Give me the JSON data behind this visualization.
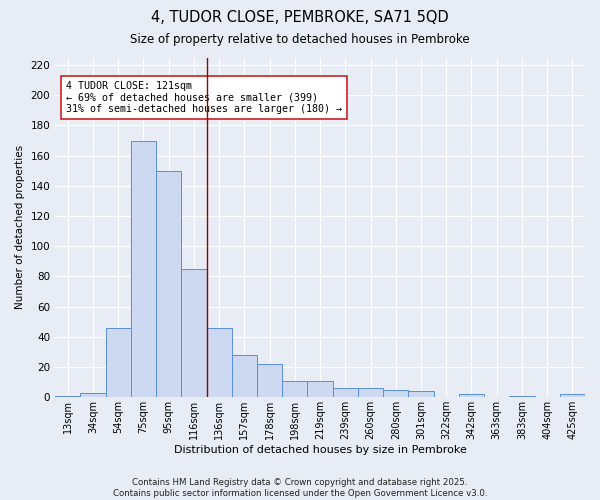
{
  "title": "4, TUDOR CLOSE, PEMBROKE, SA71 5QD",
  "subtitle": "Size of property relative to detached houses in Pembroke",
  "xlabel": "Distribution of detached houses by size in Pembroke",
  "ylabel": "Number of detached properties",
  "categories": [
    "13sqm",
    "34sqm",
    "54sqm",
    "75sqm",
    "95sqm",
    "116sqm",
    "136sqm",
    "157sqm",
    "178sqm",
    "198sqm",
    "219sqm",
    "239sqm",
    "260sqm",
    "280sqm",
    "301sqm",
    "322sqm",
    "342sqm",
    "363sqm",
    "383sqm",
    "404sqm",
    "425sqm"
  ],
  "values": [
    1,
    3,
    46,
    170,
    150,
    85,
    46,
    28,
    22,
    11,
    11,
    6,
    6,
    5,
    4,
    0,
    2,
    0,
    1,
    0,
    2
  ],
  "bar_color": "#ccd9f0",
  "bar_edge_color": "#5b8dd9",
  "vline_x": 5.5,
  "vline_color": "#990000",
  "annotation_text": "4 TUDOR CLOSE: 121sqm\n← 69% of detached houses are smaller (399)\n31% of semi-detached houses are larger (180) →",
  "annotation_box_color": "#ffffff",
  "annotation_box_edge": "#cc2222",
  "ylim": [
    0,
    225
  ],
  "yticks": [
    0,
    20,
    40,
    60,
    80,
    100,
    120,
    140,
    160,
    180,
    200,
    220
  ],
  "bg_color": "#e8edf5",
  "grid_color": "#ffffff",
  "footer": "Contains HM Land Registry data © Crown copyright and database right 2025.\nContains public sector information licensed under the Open Government Licence v3.0."
}
